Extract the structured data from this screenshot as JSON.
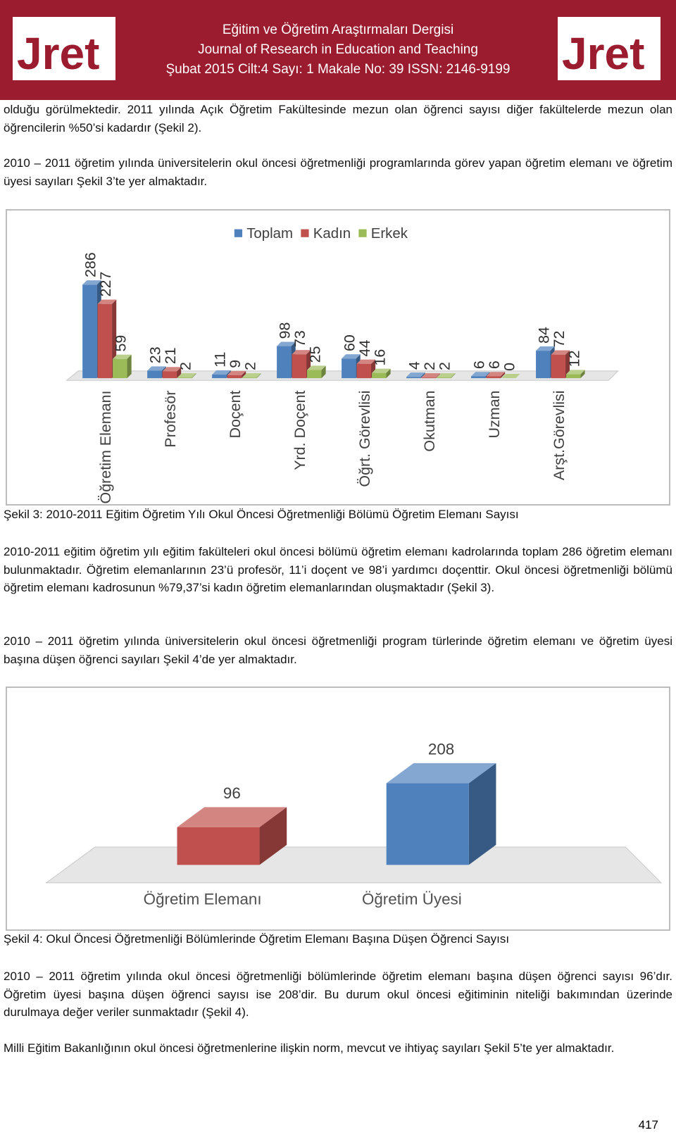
{
  "header": {
    "logo": "Jret",
    "lines": [
      "Eğitim ve Öğretim Araştırmaları Dergisi",
      "Journal of Research in Education and Teaching",
      "Şubat 2015  Cilt:4  Sayı: 1  Makale No: 39   ISSN: 2146-9199"
    ]
  },
  "paragraphs": [
    "olduğu görülmektedir. 2011 yılında Açık Öğretim Fakültesinde mezun olan öğrenci sayısı diğer fakültelerde mezun olan öğrencilerin %50’si kadardır (Şekil 2).",
    "2010 – 2011 öğretim yılında üniversitelerin okul öncesi öğretmenliği programlarında görev yapan öğretim elemanı ve öğretim üyesi sayıları Şekil 3’te yer almaktadır.",
    "2010-2011 eğitim öğretim yılı eğitim fakülteleri okul öncesi bölümü öğretim elemanı kadrolarında toplam 286 öğretim elemanı bulunmaktadır. Öğretim elemanlarının 23’ü profesör, 11’i doçent ve 98’i yardımcı doçenttir. Okul öncesi öğretmenliği bölümü öğretim elemanı kadrosunun %79,37’si kadın öğretim elemanlarından oluşmaktadır (Şekil 3).",
    "2010 – 2011 öğretim yılında üniversitelerin okul öncesi öğretmenliği program türlerinde öğretim elemanı ve öğretim üyesi başına düşen öğrenci sayıları Şekil 4’de yer almaktadır.",
    "2010 – 2011 öğretim yılında okul öncesi öğretmenliği bölümlerinde öğretim elemanı başına düşen öğrenci sayısı 96’dır. Öğretim üyesi başına düşen öğrenci sayısı ise 208’dir. Bu durum okul öncesi eğitiminin niteliği bakımından üzerinde durulmaya değer veriler sunmaktadır (Şekil 4).",
    "Milli Eğitim Bakanlığının okul öncesi öğretmenlerine ilişkin norm, mevcut ve ihtiyaç sayıları Şekil 5’te yer almaktadır."
  ],
  "chart_data": [
    {
      "type": "bar",
      "caption": "Şekil 3: 2010-2011 Eğitim Öğretim Yılı Okul Öncesi Öğretmenliği Bölümü Öğretim Elemanı Sayısı",
      "categories": [
        "Öğretim Elemanı",
        "Profesör",
        "Doçent",
        "Yrd. Doçent",
        "Öğrt. Görevlisi",
        "Okutman",
        "Uzman",
        "Arşt.Görevlisi"
      ],
      "series": [
        {
          "name": "Toplam",
          "color": "#4f81bd",
          "values": [
            286,
            23,
            11,
            98,
            60,
            4,
            6,
            84
          ]
        },
        {
          "name": "Kadın",
          "color": "#c0504d",
          "values": [
            227,
            21,
            9,
            73,
            44,
            2,
            6,
            72
          ]
        },
        {
          "name": "Erkek",
          "color": "#9bbb59",
          "values": [
            59,
            2,
            2,
            25,
            16,
            2,
            0,
            12
          ]
        }
      ],
      "legend": "top"
    },
    {
      "type": "bar",
      "caption": "Şekil 4: Okul Öncesi Öğretmenliği Bölümlerinde Öğretim Elemanı Başına Düşen Öğrenci Sayısı",
      "categories": [
        "Öğretim Elemanı",
        "Öğretim Üyesi"
      ],
      "values": [
        96,
        208
      ],
      "colors": [
        "#c0504d",
        "#4f81bd"
      ]
    }
  ],
  "page_number": "417"
}
